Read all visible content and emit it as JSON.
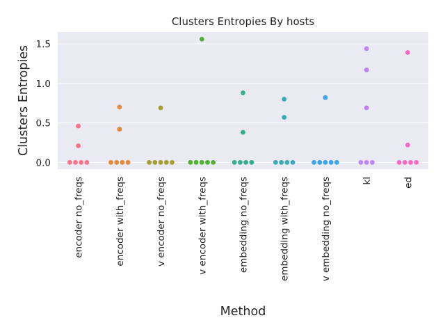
{
  "chart_data": {
    "type": "scatter",
    "title": "Clusters Entropies By hosts",
    "xlabel": "Method",
    "ylabel": "Clusters Entropies",
    "ylim": [
      -0.085,
      1.65
    ],
    "yticks": [
      0.0,
      0.5,
      1.0,
      1.5
    ],
    "ytick_labels": [
      "0.0",
      "0.5",
      "1.0",
      "1.5"
    ],
    "grid": true,
    "legend": "none",
    "categories": [
      "encoder no_freqs",
      "encoder with_freqs",
      "v encoder no_freqs",
      "v encoder with_freqs",
      "embedding no_freqs",
      "embedding with_freqs",
      "v embedding no_freqs",
      "kl",
      "ed"
    ],
    "colors": [
      "#f77189",
      "#e3873a",
      "#a59c32",
      "#50b131",
      "#36ad8c",
      "#39a9b6",
      "#3ba3ec",
      "#bb83f4",
      "#f668c2"
    ],
    "series": [
      {
        "category": "encoder no_freqs",
        "values": [
          0.0,
          0.0,
          0.0,
          0.0,
          0.21,
          0.46
        ]
      },
      {
        "category": "encoder with_freqs",
        "values": [
          0.0,
          0.0,
          0.0,
          0.0,
          0.42,
          0.7
        ]
      },
      {
        "category": "v encoder no_freqs",
        "values": [
          0.0,
          0.0,
          0.0,
          0.0,
          0.0,
          0.69
        ]
      },
      {
        "category": "v encoder with_freqs",
        "values": [
          0.0,
          0.0,
          0.0,
          0.0,
          0.0,
          1.56
        ]
      },
      {
        "category": "embedding no_freqs",
        "values": [
          0.0,
          0.0,
          0.0,
          0.0,
          0.38,
          0.88
        ]
      },
      {
        "category": "embedding with_freqs",
        "values": [
          0.0,
          0.0,
          0.0,
          0.0,
          0.57,
          0.8
        ]
      },
      {
        "category": "v embedding no_freqs",
        "values": [
          0.0,
          0.0,
          0.0,
          0.0,
          0.0,
          0.82
        ]
      },
      {
        "category": "kl",
        "values": [
          0.0,
          0.0,
          0.0,
          0.69,
          1.17,
          1.44
        ]
      },
      {
        "category": "ed",
        "values": [
          0.0,
          0.0,
          0.0,
          0.0,
          0.22,
          1.39
        ]
      }
    ]
  }
}
